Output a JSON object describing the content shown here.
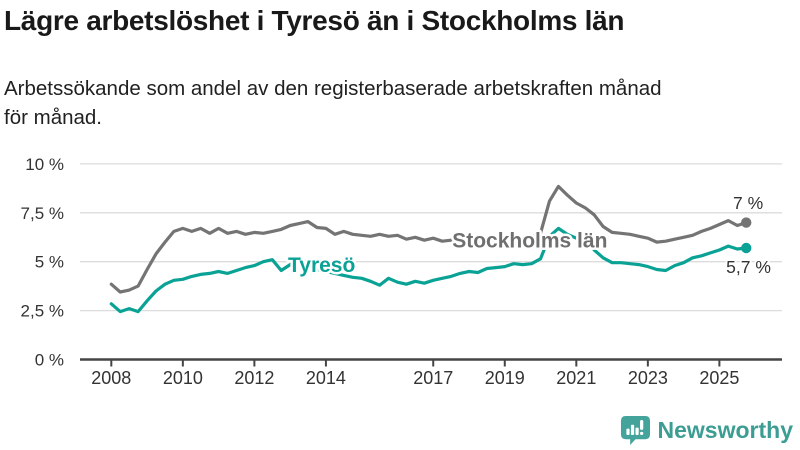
{
  "header": {
    "title": "Lägre arbetslöshet i Tyresö än i Stockholms län",
    "subtitle_lines": [
      "Arbetssökande som andel av den registerbaserade arbetskraften månad",
      "för månad."
    ]
  },
  "footer": {
    "brand": "Newsworthy",
    "brand_color": "#3C9D93",
    "icon_color": "#44A49B",
    "icon": "newsworthy-speech-bubble-bar-chart-icon"
  },
  "chart_data": {
    "type": "line",
    "title": "Lägre arbetslöshet i Tyresö än i Stockholms län",
    "xlabel": "",
    "ylabel": "",
    "unit": "%",
    "grid": true,
    "x_start": 2008,
    "x_step": 0.25,
    "xlim": [
      2007.1,
      2026.75
    ],
    "ylim": [
      0,
      10.25
    ],
    "x_ticks": [
      2008,
      2010,
      2012,
      2014,
      2017,
      2019,
      2021,
      2023,
      2025
    ],
    "y_ticks": [
      {
        "value": 10,
        "label": "10 %"
      },
      {
        "value": 7.5,
        "label": "7,5 %"
      },
      {
        "value": 5,
        "label": "5 %"
      },
      {
        "value": 2.5,
        "label": "2,5 %"
      },
      {
        "value": 0,
        "label": "0 %"
      }
    ],
    "axis_color": "#454545",
    "grid_color": "#dcdcdc",
    "tick_label_color": "#333333",
    "series": [
      {
        "name": "Stockholms län",
        "color": "#747474",
        "end_dot": true,
        "values": [
          3.85,
          3.45,
          3.55,
          3.75,
          4.6,
          5.4,
          6.0,
          6.55,
          6.7,
          6.55,
          6.7,
          6.45,
          6.7,
          6.45,
          6.55,
          6.4,
          6.5,
          6.45,
          6.55,
          6.65,
          6.85,
          6.95,
          7.05,
          6.75,
          6.7,
          6.4,
          6.55,
          6.4,
          6.35,
          6.3,
          6.4,
          6.3,
          6.35,
          6.15,
          6.25,
          6.1,
          6.2,
          6.05,
          6.1,
          6.0,
          6.1,
          6.0,
          6.05,
          6.1,
          6.05,
          6.1,
          6.15,
          6.25,
          6.45,
          8.1,
          8.85,
          8.4,
          8.0,
          7.75,
          7.4,
          6.8,
          6.5,
          6.45,
          6.4,
          6.3,
          6.2,
          6.0,
          6.05,
          6.15,
          6.25,
          6.35,
          6.55,
          6.7,
          6.9,
          7.1,
          6.85,
          7.0
        ]
      },
      {
        "name": "Tyresö",
        "color": "#0AA295",
        "end_dot": true,
        "values": [
          2.85,
          2.45,
          2.6,
          2.45,
          3.0,
          3.5,
          3.85,
          4.05,
          4.1,
          4.25,
          4.35,
          4.4,
          4.5,
          4.4,
          4.55,
          4.7,
          4.8,
          5.0,
          5.1,
          4.55,
          4.85,
          5.2,
          4.9,
          4.6,
          4.5,
          4.4,
          4.3,
          4.2,
          4.15,
          4.0,
          3.8,
          4.15,
          3.95,
          3.85,
          4.0,
          3.9,
          4.05,
          4.15,
          4.25,
          4.4,
          4.5,
          4.45,
          4.65,
          4.7,
          4.75,
          4.9,
          4.85,
          4.9,
          5.15,
          6.3,
          6.7,
          6.4,
          6.2,
          6.3,
          5.6,
          5.2,
          4.95,
          4.95,
          4.9,
          4.85,
          4.75,
          4.6,
          4.55,
          4.8,
          4.95,
          5.2,
          5.3,
          5.45,
          5.6,
          5.8,
          5.65,
          5.7
        ]
      }
    ],
    "line_labels": [
      {
        "text": "Stockholms län",
        "year": 2017.53,
        "value": 6.11,
        "color": "#6F6F6F"
      },
      {
        "text": "Tyresö",
        "year": 2012.94,
        "value": 4.86,
        "color": "#0AA295"
      }
    ],
    "end_labels": [
      {
        "text": "7 %",
        "year": 2025.38,
        "value": 8.0,
        "color": "#333333"
      },
      {
        "text": "5,7 %",
        "year": 2025.19,
        "value": 4.73,
        "color": "#333333"
      }
    ]
  }
}
